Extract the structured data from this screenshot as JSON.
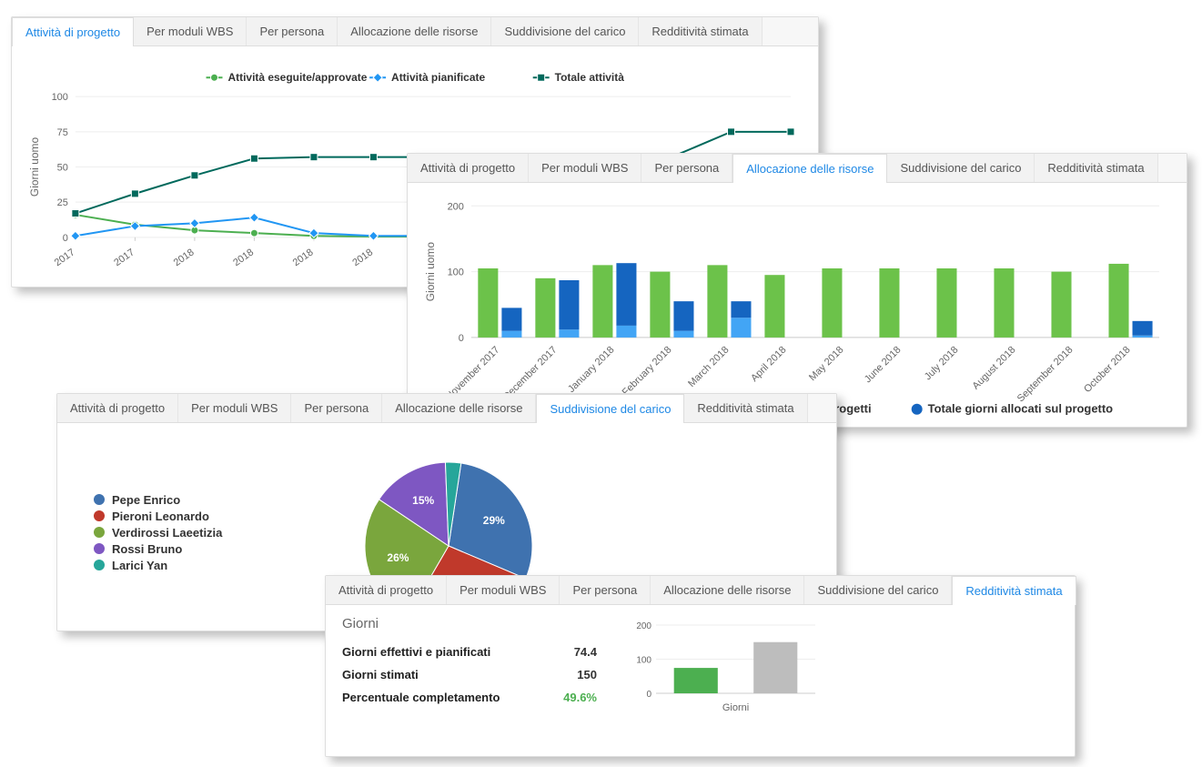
{
  "tabs": {
    "t0": "Attività di progetto",
    "t1": "Per moduli WBS",
    "t2": "Per persona",
    "t3": "Allocazione delle risorse",
    "t4": "Suddivisione del carico",
    "t5": "Redditività stimata"
  },
  "panel1": {
    "active_tab": 0,
    "ylabel": "Giorni uomo",
    "ylim": [
      0,
      100
    ],
    "ytick_step": 25,
    "categories": [
      "2017",
      "2017",
      "2018",
      "2018",
      "2018",
      "2018",
      "",
      "",
      "",
      "",
      "",
      "",
      ""
    ],
    "series": [
      {
        "name": "Attività eseguite/approvate",
        "color": "#4caf50",
        "marker": "circle",
        "values": [
          16,
          9,
          5,
          3,
          1,
          0.5,
          0.5,
          0.5,
          0.5,
          0.5,
          0.5,
          0.5,
          0.5
        ]
      },
      {
        "name": "Attività pianificate",
        "color": "#2196f3",
        "marker": "diamond",
        "values": [
          1,
          8,
          10,
          14,
          3,
          1,
          1,
          1,
          1,
          1,
          1,
          1,
          1
        ]
      },
      {
        "name": "Totale attività",
        "color": "#00695c",
        "marker": "square",
        "values": [
          17,
          31,
          44,
          56,
          57,
          57,
          57,
          57,
          57,
          57,
          57,
          75,
          75
        ]
      }
    ],
    "grid_color": "#eeeeee",
    "axis_color": "#cccccc",
    "background": "#ffffff"
  },
  "panel2": {
    "active_tab": 3,
    "ylabel": "Giorni uomo",
    "ylim": [
      0,
      200
    ],
    "ytick_step": 100,
    "categories": [
      "November 2017",
      "December 2017",
      "January 2018",
      "February 2018",
      "March 2018",
      "April 2018",
      "May 2018",
      "June 2018",
      "July 2018",
      "August 2018",
      "September 2018",
      "October 2018"
    ],
    "series": [
      {
        "name_visible": "altri progetti",
        "color": "#6cc24a",
        "values": [
          105,
          90,
          110,
          100,
          110,
          95,
          105,
          105,
          105,
          105,
          100,
          112
        ]
      },
      {
        "name_visible": "Totale giorni allocati sul progetto",
        "color": "#1565c0",
        "values": [
          35,
          75,
          95,
          45,
          25,
          0,
          0,
          0,
          0,
          0,
          0,
          22
        ]
      },
      {
        "name_visible": "",
        "color": "#42a5f5",
        "values": [
          10,
          12,
          18,
          10,
          30,
          0,
          0,
          0,
          0,
          0,
          0,
          3
        ]
      }
    ],
    "legend_marker": "circle",
    "bar_width_ratio": 0.35,
    "grid_color": "#eeeeee",
    "axis_color": "#cccccc"
  },
  "panel3": {
    "active_tab": 4,
    "slices": [
      {
        "label": "Pepe Enrico",
        "value": 29,
        "color": "#3f72af",
        "pct_label": "29%"
      },
      {
        "label": "Pieroni Leonardo",
        "value": 27,
        "color": "#c0392b",
        "pct_label": "27%"
      },
      {
        "label": "Verdirossi Laeetizia",
        "value": 26,
        "color": "#7aa63d",
        "pct_label": "26%"
      },
      {
        "label": "Rossi Bruno",
        "value": 15,
        "color": "#7e57c2",
        "pct_label": "15%"
      },
      {
        "label": "Larici Yan",
        "value": 3,
        "color": "#26a69a",
        "pct_label": ""
      }
    ]
  },
  "panel4": {
    "active_tab": 5,
    "section_title": "Giorni",
    "rows": [
      {
        "label": "Giorni effettivi e pianificati",
        "value": "74.4",
        "green": false
      },
      {
        "label": "Giorni stimati",
        "value": "150",
        "green": false
      },
      {
        "label": "Percentuale completamento",
        "value": "49.6%",
        "green": true
      }
    ],
    "chart": {
      "ylim": [
        0,
        200
      ],
      "ytick_step": 100,
      "x_label": "Giorni",
      "bars": [
        {
          "value": 74.4,
          "color": "#4caf50"
        },
        {
          "value": 150,
          "color": "#bdbdbd"
        }
      ],
      "axis_color": "#cccccc"
    }
  }
}
